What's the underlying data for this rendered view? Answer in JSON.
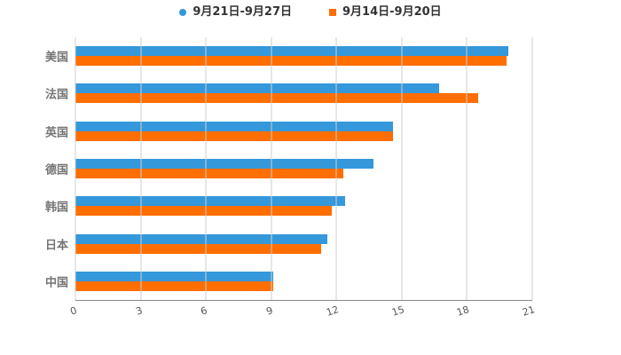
{
  "legend": {
    "items": [
      {
        "label": "9月21日-9月27日",
        "color": "#3498db",
        "marker": "circle"
      },
      {
        "label": "9月14日-9月20日",
        "color": "#ff6e00",
        "marker": "square"
      }
    ]
  },
  "chart_data": {
    "type": "bar",
    "orientation": "horizontal",
    "title": "",
    "xlabel": "",
    "ylabel": "",
    "categories": [
      "美国",
      "法国",
      "英国",
      "德国",
      "韩国",
      "日本",
      "中国"
    ],
    "series": [
      {
        "name": "9月21日-9月27日",
        "color": "#3498db",
        "values": [
          19.9,
          16.7,
          14.6,
          13.7,
          12.4,
          11.6,
          9.1
        ]
      },
      {
        "name": "9月14日-9月20日",
        "color": "#ff6e00",
        "values": [
          19.8,
          18.5,
          14.6,
          12.3,
          11.8,
          11.3,
          9.1
        ]
      }
    ],
    "x_ticks": [
      0,
      3,
      6,
      9,
      12,
      15,
      18,
      21
    ],
    "xlim": [
      0,
      21
    ],
    "grid": true,
    "gridline_color": "#cfcfcf",
    "axis_line_color": "#8a8a8a",
    "tick_label_color": "#555555",
    "category_label_color": "#757575",
    "legend_position": "top",
    "background": "#ffffff"
  }
}
